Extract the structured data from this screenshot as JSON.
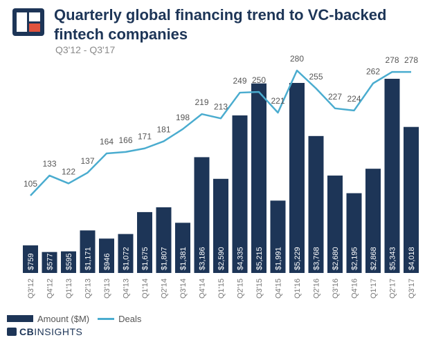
{
  "header": {
    "title": "Quarterly global financing trend to VC-backed fintech companies",
    "subtitle": "Q3'12 - Q3'17"
  },
  "legend": {
    "amount_label": "Amount ($M)",
    "deals_label": "Deals"
  },
  "brand": {
    "cb": "CB",
    "insights": "INSIGHTS"
  },
  "colors": {
    "bar": "#1d3557",
    "line": "#4aaccf",
    "label": "#555555",
    "bar_label": "#ffffff"
  },
  "chart_data": {
    "type": "bar",
    "title": "Quarterly global financing trend to VC-backed fintech companies",
    "subtitle": "Q3'12 - Q3'17",
    "categories": [
      "Q3'12",
      "Q4'12",
      "Q1'13",
      "Q2'13",
      "Q3'13",
      "Q4'13",
      "Q1'14",
      "Q2'14",
      "Q3'14",
      "Q4'14",
      "Q1'15",
      "Q2'15",
      "Q3'15",
      "Q4'15",
      "Q1'16",
      "Q2'16",
      "Q3'16",
      "Q4'16",
      "Q1'17",
      "Q2'17",
      "Q3'17"
    ],
    "series": [
      {
        "name": "Amount ($M)",
        "type": "bar",
        "values": [
          759,
          577,
          595,
          1171,
          946,
          1072,
          1675,
          1807,
          1381,
          3186,
          2590,
          4335,
          5215,
          1991,
          5229,
          3768,
          2680,
          2195,
          2868,
          5343,
          4018
        ],
        "labels": [
          "$759",
          "$577",
          "$595",
          "$1,171",
          "$946",
          "$1,072",
          "$1,675",
          "$1,807",
          "$1,381",
          "$3,186",
          "$2,590",
          "$4,335",
          "$5,215",
          "$1,991",
          "$5,229",
          "$3,768",
          "$2,680",
          "$2,195",
          "$2,868",
          "$5,343",
          "$4,018"
        ]
      },
      {
        "name": "Deals",
        "type": "line",
        "values": [
          105,
          133,
          122,
          137,
          164,
          166,
          171,
          181,
          198,
          219,
          213,
          249,
          250,
          221,
          280,
          255,
          227,
          224,
          262,
          278,
          278
        ]
      }
    ],
    "legend": "bottom-left"
  }
}
